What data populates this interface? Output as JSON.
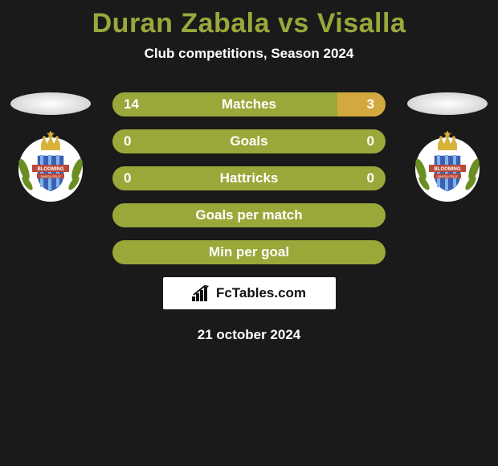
{
  "title": {
    "text": "Duran Zabala vs Visalla",
    "color": "#9aa83a",
    "fontsize": 34
  },
  "subtitle": "Club competitions, Season 2024",
  "colors": {
    "bar_bg": "#9aa83a",
    "bar_fill_alt": "#d1a93e",
    "text": "#ffffff",
    "page_bg": "#1a1a1a"
  },
  "bars": [
    {
      "label": "Matches",
      "left": "14",
      "right": "3",
      "left_pct": 82.35,
      "right_pct": 17.65,
      "left_color": "#9aa83a",
      "right_color": "#d1a93e"
    },
    {
      "label": "Goals",
      "left": "0",
      "right": "0",
      "left_pct": 0,
      "right_pct": 0,
      "left_color": "#9aa83a",
      "right_color": "#9aa83a"
    },
    {
      "label": "Hattricks",
      "left": "0",
      "right": "0",
      "left_pct": 0,
      "right_pct": 0,
      "left_color": "#9aa83a",
      "right_color": "#9aa83a"
    },
    {
      "label": "Goals per match",
      "left": "",
      "right": "",
      "left_pct": 0,
      "right_pct": 0,
      "left_color": "#9aa83a",
      "right_color": "#9aa83a"
    },
    {
      "label": "Min per goal",
      "left": "",
      "right": "",
      "left_pct": 0,
      "right_pct": 0,
      "left_color": "#9aa83a",
      "right_color": "#9aa83a"
    }
  ],
  "team_crests": {
    "left": {
      "shield_color": "#3b5fb5",
      "crown_color": "#d9b23a",
      "banner_text": "BLOOMING",
      "banner_sub": "SANTA CRUZ"
    },
    "right": {
      "shield_color": "#3b5fb5",
      "crown_color": "#d9b23a",
      "banner_text": "BLOOMING",
      "banner_sub": "SANTA CRUZ"
    }
  },
  "brand": "FcTables.com",
  "date": "21 october 2024"
}
